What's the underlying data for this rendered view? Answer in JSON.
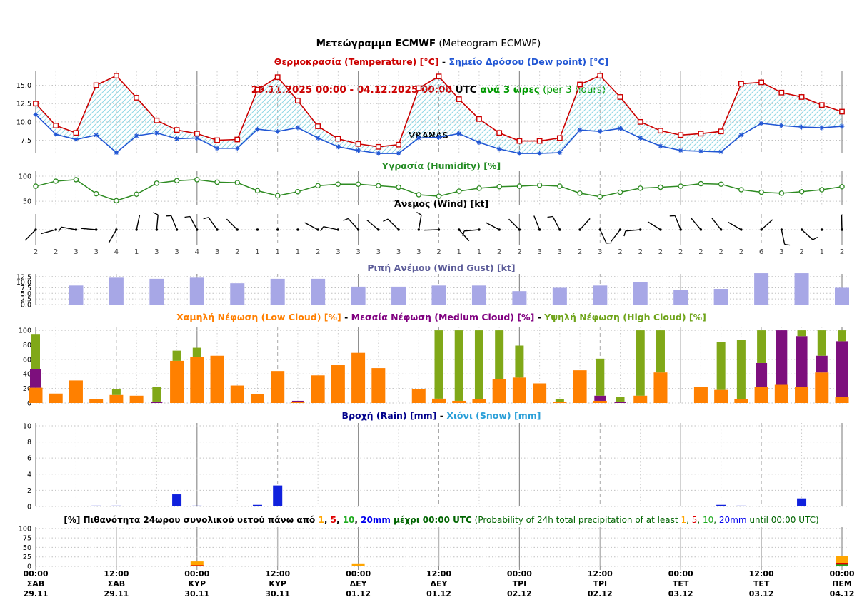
{
  "header": {
    "title_bold": "Μετεώγραμμα ECMWF",
    "title_rest": " (Meteogram ECMWF)",
    "date_range": "29.11.2025 00:00 - 04.12.2025 00:00",
    "utc_label": " UTC ",
    "interval_greek": "ανά 3 ώρες",
    "interval_rest": " (per 3 hours)",
    "station": "VRANAS"
  },
  "colors": {
    "temperature": "#cc0000",
    "dew_point": "#2156d4",
    "fill_hatch": "#8ed7e4",
    "humidity": "#2e8b22",
    "wind_barb": "#000000",
    "wind_gust_bar": "#a7a7e6",
    "low_cloud": "#ff8000",
    "medium_cloud": "#7d0f7d",
    "high_cloud": "#80a818",
    "rain": "#1021dd",
    "snow": "#2a9fd8",
    "prob_1mm": "#ffa500",
    "prob_5mm": "#e00000",
    "prob_10mm": "#1faa1f",
    "prob_20mm": "#0000ee"
  },
  "x_axis": {
    "n_points": 41,
    "step_hours": 3,
    "labels": [
      {
        "time": "00:00",
        "day": "ΣΑΒ",
        "date": "29.11"
      },
      {
        "time": "12:00",
        "day": "ΣΑΒ",
        "date": "29.11"
      },
      {
        "time": "00:00",
        "day": "ΚΥΡ",
        "date": "30.11"
      },
      {
        "time": "12:00",
        "day": "ΚΥΡ",
        "date": "30.11"
      },
      {
        "time": "00:00",
        "day": "ΔΕΥ",
        "date": "01.12"
      },
      {
        "time": "12:00",
        "day": "ΔΕΥ",
        "date": "01.12"
      },
      {
        "time": "00:00",
        "day": "ΤΡΙ",
        "date": "02.12"
      },
      {
        "time": "12:00",
        "day": "ΤΡΙ",
        "date": "02.12"
      },
      {
        "time": "00:00",
        "day": "ΤΕΤ",
        "date": "03.12"
      },
      {
        "time": "12:00",
        "day": "ΤΕΤ",
        "date": "03.12"
      },
      {
        "time": "00:00",
        "day": "ΠΕΜ",
        "date": "04.12"
      }
    ]
  },
  "chart_data": [
    {
      "id": "temperature",
      "type": "line",
      "title_parts": [
        {
          "t": "Θερμοκρασία (Temperature) [°C]",
          "c": "#cc0000",
          "b": 1
        },
        {
          "t": " - ",
          "c": "#000000",
          "b": 1
        },
        {
          "t": "Σημείο Δρόσου (Dew point) [°C]",
          "c": "#2156d4",
          "b": 1
        }
      ],
      "yticks": [
        7.5,
        10,
        12.5,
        15
      ],
      "ytick_labels": [
        "7.5",
        "10.0",
        "12.5",
        "15.0"
      ],
      "ylim": [
        5.8,
        16.9
      ],
      "series": [
        {
          "name": "temperature",
          "color": "#cc0000",
          "marker": "square",
          "values": [
            12.5,
            9.5,
            8.5,
            15.0,
            16.3,
            13.3,
            10.2,
            8.9,
            8.4,
            7.5,
            7.6,
            14.4,
            16.1,
            12.9,
            9.4,
            7.7,
            7.0,
            6.6,
            6.9,
            14.6,
            16.2,
            13.1,
            10.4,
            8.5,
            7.4,
            7.4,
            7.8,
            15.1,
            16.3,
            13.4,
            10.0,
            8.8,
            8.2,
            8.4,
            8.7,
            15.2,
            15.4,
            14.0,
            13.4,
            12.3,
            11.4
          ]
        },
        {
          "name": "dew_point",
          "color": "#2156d4",
          "marker": "asterisk",
          "values": [
            11.0,
            8.3,
            7.6,
            8.2,
            5.8,
            8.1,
            8.5,
            7.7,
            7.8,
            6.4,
            6.4,
            9.0,
            8.7,
            9.2,
            7.8,
            6.6,
            6.1,
            5.7,
            5.7,
            7.8,
            7.9,
            8.4,
            7.2,
            6.3,
            5.7,
            5.7,
            5.8,
            8.9,
            8.7,
            9.1,
            7.8,
            6.7,
            6.1,
            6.0,
            5.9,
            8.2,
            9.8,
            9.5,
            9.3,
            9.2,
            9.4
          ]
        }
      ]
    },
    {
      "id": "humidity",
      "type": "line",
      "title_parts": [
        {
          "t": "Υγρασία (Humidity) [%]",
          "c": "#228b22",
          "b": 1
        }
      ],
      "yticks": [
        50,
        100
      ],
      "ytick_labels": [
        "50",
        "100"
      ],
      "ylim": [
        43,
        110
      ],
      "color": "#2e8b22",
      "marker": "circle",
      "values": [
        80,
        90,
        93,
        65,
        51,
        64,
        86,
        91,
        93,
        88,
        87,
        71,
        61,
        69,
        81,
        84,
        84,
        81,
        78,
        63,
        60,
        70,
        76,
        79,
        80,
        82,
        80,
        66,
        59,
        68,
        76,
        78,
        80,
        85,
        84,
        73,
        68,
        66,
        69,
        73,
        79
      ]
    },
    {
      "id": "wind",
      "type": "wind_barbs",
      "title_parts": [
        {
          "t": "Άνεμος (Wind) [kt]",
          "c": "#000000",
          "b": 1
        }
      ],
      "unit": "kt",
      "speeds": [
        2,
        2,
        3,
        3,
        4,
        1,
        3,
        3,
        4,
        3,
        2,
        1,
        1,
        1,
        2,
        3,
        3,
        3,
        3,
        3,
        2,
        1,
        1,
        2,
        2,
        3,
        3,
        2,
        3,
        2,
        2,
        2,
        2,
        2,
        2,
        2,
        6,
        3,
        2,
        1,
        2
      ],
      "angles": [
        225,
        195,
        170,
        175,
        240,
        78,
        85,
        112,
        118,
        125,
        135,
        null,
        null,
        null,
        152,
        168,
        132,
        140,
        135,
        80,
        182,
        312,
        185,
        152,
        135,
        112,
        118,
        48,
        295,
        232,
        185,
        148,
        112,
        130,
        128,
        150,
        42,
        282,
        318,
        null,
        92
      ],
      "flicks": [
        0,
        0,
        1,
        0,
        0,
        0,
        1,
        1,
        1,
        1,
        0,
        0,
        0,
        0,
        0,
        1,
        1,
        0,
        1,
        1,
        0,
        0,
        1,
        0,
        0,
        0,
        1,
        0,
        1,
        0,
        1,
        0,
        1,
        0,
        0,
        0,
        0,
        1,
        1,
        0,
        0
      ]
    },
    {
      "id": "wind_gust",
      "type": "bar",
      "title_parts": [
        {
          "t": "Ριπή Ανέμου (Wind Gust) [kt]",
          "c": "#5c5c99",
          "b": 1
        }
      ],
      "yticks": [
        0,
        2.5,
        5,
        7.5,
        10,
        12.5
      ],
      "ytick_labels": [
        "0.0",
        "2.5",
        "5.0",
        "7.5",
        "10.0",
        "12.5"
      ],
      "ylim": [
        0,
        13.7
      ],
      "bar_color": "#a7a7e6",
      "indices": [
        2,
        4,
        6,
        8,
        10,
        12,
        14,
        16,
        18,
        20,
        22,
        24,
        26,
        28,
        30,
        32,
        34,
        36,
        38,
        40
      ],
      "values": [
        8.5,
        12,
        11.5,
        12,
        9.5,
        11.5,
        11.5,
        8,
        8,
        8.5,
        8.5,
        6,
        7.5,
        8.5,
        10,
        6.5,
        7,
        14,
        14,
        7.5
      ]
    },
    {
      "id": "clouds",
      "type": "stacked_bar",
      "title_parts": [
        {
          "t": "Χαμηλή Νέφωση (Low Cloud) [%]",
          "c": "#ff7f00",
          "b": 1
        },
        {
          "t": " - ",
          "c": "#000000",
          "b": 1
        },
        {
          "t": "Μεσαία Νέφωση (Medium Cloud) [%]",
          "c": "#800080",
          "b": 1
        },
        {
          "t": " - ",
          "c": "#000000",
          "b": 1
        },
        {
          "t": "Υψηλή Νέφωση (High Cloud) [%]",
          "c": "#6fa41a",
          "b": 1
        }
      ],
      "yticks": [
        0,
        20,
        40,
        60,
        80,
        100
      ],
      "ytick_labels": [
        "0",
        "20",
        "40",
        "60",
        "80",
        "100"
      ],
      "ylim": [
        0,
        105
      ],
      "series_order": [
        "low",
        "medium",
        "high"
      ],
      "series_colors": {
        "low": "#ff8000",
        "medium": "#7d0f7d",
        "high": "#80a818"
      },
      "values": [
        [
          21,
          26,
          48
        ],
        [
          13,
          0,
          0
        ],
        [
          31,
          0,
          0
        ],
        [
          5,
          0,
          0
        ],
        [
          11,
          0,
          8
        ],
        [
          10,
          0,
          0
        ],
        [
          0,
          2,
          20
        ],
        [
          58,
          0,
          14
        ],
        [
          63,
          0,
          13
        ],
        [
          65,
          0,
          0
        ],
        [
          24,
          0,
          0
        ],
        [
          12,
          0,
          0
        ],
        [
          44,
          0,
          0
        ],
        [
          1,
          2,
          0
        ],
        [
          38,
          0,
          0
        ],
        [
          52,
          0,
          0
        ],
        [
          69,
          0,
          0
        ],
        [
          48,
          0,
          0
        ],
        [
          0,
          0,
          0
        ],
        [
          19,
          0,
          0
        ],
        [
          6,
          0,
          94
        ],
        [
          3,
          0,
          97
        ],
        [
          5,
          0,
          95
        ],
        [
          33,
          0,
          67
        ],
        [
          35,
          0,
          44
        ],
        [
          27,
          0,
          0
        ],
        [
          1,
          0,
          4
        ],
        [
          45,
          0,
          0
        ],
        [
          3,
          7,
          51
        ],
        [
          0,
          2,
          6
        ],
        [
          10,
          0,
          90
        ],
        [
          42,
          0,
          58
        ],
        [
          0,
          0,
          0
        ],
        [
          22,
          0,
          0
        ],
        [
          18,
          0,
          66
        ],
        [
          5,
          0,
          82
        ],
        [
          22,
          33,
          45
        ],
        [
          25,
          75,
          0
        ],
        [
          22,
          70,
          8
        ],
        [
          42,
          23,
          35
        ],
        [
          8,
          77,
          15
        ]
      ]
    },
    {
      "id": "rain",
      "type": "bar",
      "title_parts": [
        {
          "t": "Βροχή (Rain) [mm]",
          "c": "#00008b",
          "b": 1
        },
        {
          "t": " - ",
          "c": "#000000",
          "b": 1
        },
        {
          "t": "Χιόνι (Snow) [mm]",
          "c": "#2a9fd8",
          "b": 1
        }
      ],
      "yticks": [
        0,
        2,
        4,
        6,
        8,
        10
      ],
      "ytick_labels": [
        "0",
        "2",
        "4",
        "6",
        "8",
        "10"
      ],
      "ylim": [
        0,
        10.35
      ],
      "bar_color": "#1021dd",
      "values": [
        0,
        0,
        0,
        0.1,
        0.1,
        0,
        0,
        1.5,
        0.1,
        0,
        0,
        0.2,
        2.6,
        0,
        0,
        0,
        0,
        0,
        0,
        0,
        0,
        0,
        0,
        0,
        0,
        0,
        0,
        0,
        0,
        0,
        0,
        0,
        0,
        0,
        0.2,
        0.1,
        0,
        0,
        1.0,
        0,
        0
      ]
    },
    {
      "id": "probability",
      "type": "overlay_bar",
      "title_parts": [
        {
          "t": "[%] Πιθανότητα 24ωρου συνολικού υετού πάνω από ",
          "c": "#000000",
          "b": 1
        },
        {
          "t": "1",
          "c": "#ffa500",
          "b": 1
        },
        {
          "t": ", ",
          "c": "#000000",
          "b": 1
        },
        {
          "t": "5",
          "c": "#e00000",
          "b": 1
        },
        {
          "t": ", ",
          "c": "#000000",
          "b": 1
        },
        {
          "t": "10",
          "c": "#1faa1f",
          "b": 1
        },
        {
          "t": ", ",
          "c": "#000000",
          "b": 1
        },
        {
          "t": "20mm",
          "c": "#0000ee",
          "b": 1
        },
        {
          "t": " μέχρι 00:00 UTC",
          "c": "#006400",
          "b": 1
        },
        {
          "t": " (Probability of 24h total precipitation of at least ",
          "c": "#006400",
          "b": 0
        },
        {
          "t": "1",
          "c": "#ffa500",
          "b": 0
        },
        {
          "t": ", ",
          "c": "#006400",
          "b": 0
        },
        {
          "t": "5",
          "c": "#e00000",
          "b": 0
        },
        {
          "t": ", ",
          "c": "#006400",
          "b": 0
        },
        {
          "t": "10",
          "c": "#1faa1f",
          "b": 0
        },
        {
          "t": ", ",
          "c": "#006400",
          "b": 0
        },
        {
          "t": "20mm",
          "c": "#0000ee",
          "b": 0
        },
        {
          "t": " until 00:00 UTC)",
          "c": "#006400",
          "b": 0
        }
      ],
      "yticks": [
        0,
        25,
        50,
        75,
        100
      ],
      "ytick_labels": [
        "0",
        "25",
        "50",
        "75",
        "100"
      ],
      "ylim": [
        0,
        103.5
      ],
      "thresholds": [
        "1mm",
        "5mm",
        "10mm",
        "20mm"
      ],
      "threshold_colors": [
        "#ffa500",
        "#e00000",
        "#1faa1f",
        "#0000ee"
      ],
      "values": [
        [
          0,
          0,
          0,
          0
        ],
        [
          0,
          0,
          0,
          0
        ],
        [
          13,
          3,
          0,
          0
        ],
        [
          0,
          0,
          0,
          0
        ],
        [
          6,
          0,
          0,
          0
        ],
        [
          0,
          0,
          0,
          0
        ],
        [
          0,
          0,
          0,
          0
        ],
        [
          0,
          0,
          0,
          0
        ],
        [
          0,
          0,
          0,
          0
        ],
        [
          0,
          0,
          0,
          0
        ],
        [
          28,
          9,
          5,
          0
        ]
      ]
    }
  ]
}
